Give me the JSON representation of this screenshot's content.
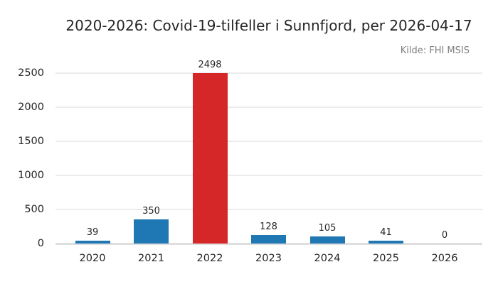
{
  "title": "2020-2026: Covid-19-tilfeller i Sunnfjord, per 2026-04-17",
  "source": "Kilde: FHI MSIS",
  "colors": {
    "bar_default": "#1f77b4",
    "bar_highlight": "#d62728",
    "title_text": "#262626",
    "tick_text": "#262626",
    "source_text": "#7f7f7f",
    "gridline": "#ececec",
    "baseline": "#dfdfdf",
    "background": "#ffffff"
  },
  "chart_data": {
    "type": "bar",
    "title": "2020-2026: Covid-19-tilfeller i Sunnfjord, per 2026-04-17",
    "annotation": "Kilde: FHI MSIS",
    "categories": [
      "2020",
      "2021",
      "2022",
      "2023",
      "2024",
      "2025",
      "2026"
    ],
    "values": [
      39,
      350,
      2498,
      128,
      105,
      41,
      0
    ],
    "bar_colors": [
      "#1f77b4",
      "#1f77b4",
      "#d62728",
      "#1f77b4",
      "#1f77b4",
      "#1f77b4",
      "#1f77b4"
    ],
    "highlight_index": 2,
    "value_labels": [
      39,
      350,
      2498,
      128,
      105,
      41,
      0
    ],
    "xlabel": "",
    "ylabel": "",
    "ylim": [
      0,
      2500
    ],
    "yticks": [
      0,
      500,
      1000,
      1500,
      2000,
      2500
    ],
    "grid": true,
    "legend_position": "none"
  }
}
